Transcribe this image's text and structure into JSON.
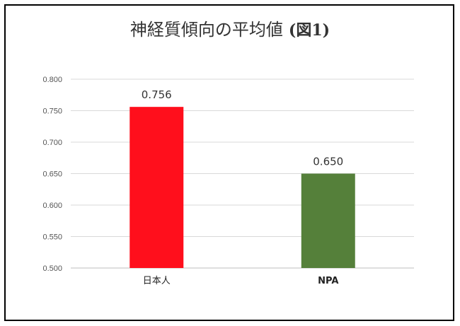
{
  "chart_data": {
    "type": "bar",
    "title": "神経質傾向の平均値",
    "title_suffix": "(図1)",
    "categories": [
      "日本人",
      "NPA"
    ],
    "values": [
      0.756,
      0.65
    ],
    "data_labels": [
      "0.756",
      "0.650"
    ],
    "colors": [
      "#ff0f1c",
      "#55803a"
    ],
    "ylim": [
      0.5,
      0.8
    ],
    "yticks": [
      "0.500",
      "0.550",
      "0.600",
      "0.650",
      "0.700",
      "0.750",
      "0.800"
    ],
    "grid": true,
    "xlabel": "",
    "ylabel": ""
  }
}
